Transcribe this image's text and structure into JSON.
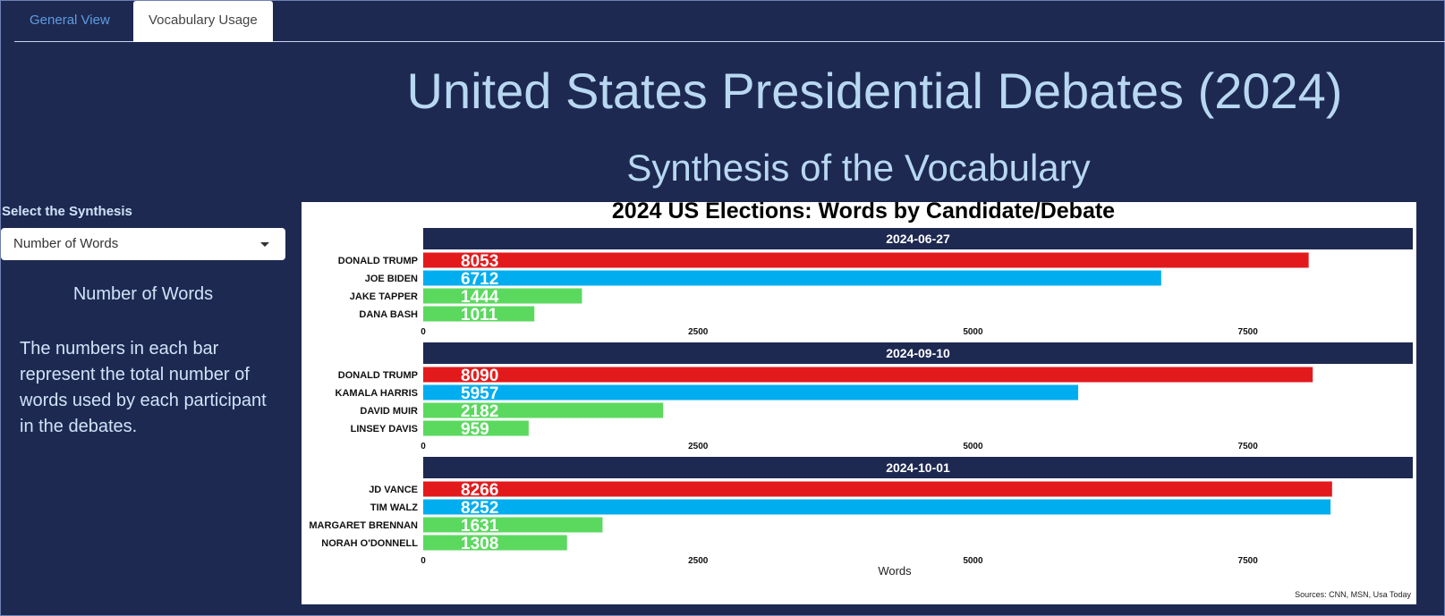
{
  "tabs": [
    {
      "label": "General View",
      "active": false
    },
    {
      "label": "Vocabulary Usage",
      "active": true
    }
  ],
  "page": {
    "title": "United States Presidential Debates (2024)",
    "subtitle": "Synthesis of the Vocabulary"
  },
  "sidebar": {
    "select_label": "Select the Synthesis",
    "select_value": "Number of Words",
    "heading": "Number of Words",
    "description": "The numbers in each bar represent the total number of words used by each participant in the debates."
  },
  "colors": {
    "background": "#1e2952",
    "candidate_red": "#e31a1c",
    "candidate_blue": "#00aeef",
    "moderator_green": "#5bd95f",
    "panel_header": "#1e2952"
  },
  "chart_data": {
    "type": "bar",
    "orientation": "horizontal",
    "title": "2024 US Elections: Words by Candidate/Debate",
    "xlabel": "Words",
    "xlim": [
      0,
      9000
    ],
    "xticks": [
      0,
      2500,
      5000,
      7500
    ],
    "source": "Sources: CNN, MSN, Usa Today",
    "grid": false,
    "panels": [
      {
        "date": "2024-06-27",
        "participants": [
          {
            "name": "DONALD TRUMP",
            "value": 8053,
            "color": "#e31a1c"
          },
          {
            "name": "JOE BIDEN",
            "value": 6712,
            "color": "#00aeef"
          },
          {
            "name": "JAKE TAPPER",
            "value": 1444,
            "color": "#5bd95f"
          },
          {
            "name": "DANA BASH",
            "value": 1011,
            "color": "#5bd95f"
          }
        ]
      },
      {
        "date": "2024-09-10",
        "participants": [
          {
            "name": "DONALD TRUMP",
            "value": 8090,
            "color": "#e31a1c"
          },
          {
            "name": "KAMALA HARRIS",
            "value": 5957,
            "color": "#00aeef"
          },
          {
            "name": "DAVID MUIR",
            "value": 2182,
            "color": "#5bd95f"
          },
          {
            "name": "LINSEY DAVIS",
            "value": 959,
            "color": "#5bd95f"
          }
        ]
      },
      {
        "date": "2024-10-01",
        "participants": [
          {
            "name": "JD VANCE",
            "value": 8266,
            "color": "#e31a1c"
          },
          {
            "name": "TIM WALZ",
            "value": 8252,
            "color": "#00aeef"
          },
          {
            "name": "MARGARET BRENNAN",
            "value": 1631,
            "color": "#5bd95f"
          },
          {
            "name": "NORAH O'DONNELL",
            "value": 1308,
            "color": "#5bd95f"
          }
        ]
      }
    ]
  }
}
